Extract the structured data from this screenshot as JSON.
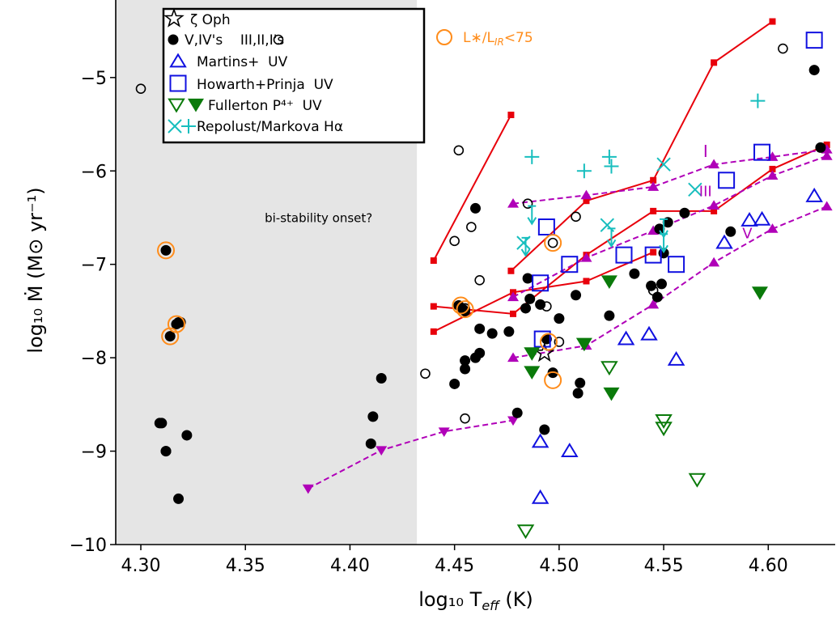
{
  "chart_data": {
    "type": "scatter",
    "xlabel": "log₁₀ T",
    "xlabel_sub": "eff",
    "xlabel_unit": " (K)",
    "ylabel": "log₁₀ Ṁ (M⊙  yr⁻¹)",
    "xlim": [
      4.288,
      4.632
    ],
    "ylim": [
      -10.0,
      -4.17
    ],
    "xticks": [
      "4.30",
      "4.35",
      "4.40",
      "4.45",
      "4.50",
      "4.55",
      "4.60"
    ],
    "yticks": [
      "−10",
      "−9",
      "−8",
      "−7",
      "−6",
      "−5"
    ],
    "shaded_region": {
      "x_from": 4.288,
      "x_to": 4.432,
      "color": "#e5e5e5"
    },
    "annotations": [
      {
        "text": "bi-stability onset?",
        "x": 4.385,
        "y": -6.55,
        "color": "#000000",
        "size": 15
      },
      {
        "text": "I",
        "x": 4.57,
        "y": -5.85,
        "color": "#b000b8",
        "size": 20
      },
      {
        "text": "III",
        "x": 4.57,
        "y": -6.27,
        "color": "#b000b8",
        "size": 18
      },
      {
        "text": "V",
        "x": 4.59,
        "y": -6.72,
        "color": "#b000b8",
        "size": 18
      }
    ],
    "legend": {
      "position": "top-left",
      "entries": [
        {
          "marker": "star",
          "label": "ζ Oph"
        },
        {
          "marker": "dot-filled+dot-open",
          "label": "V,IV's    III,II,I's"
        },
        {
          "marker": "triangle-up-blue",
          "label": "Martins+  UV"
        },
        {
          "marker": "square-blue",
          "label": "Howarth+Prinja  UV"
        },
        {
          "marker": "triangle-down-green",
          "label": "Fullerton P⁴⁺  UV"
        },
        {
          "marker": "x-plus-cyan",
          "label": "Repolust/Markova Hα"
        }
      ]
    },
    "highlight_legend": {
      "label": "L∗/L",
      "label_sub": "IR",
      "label_tail": "<75",
      "color": "#ff8c1a"
    },
    "colors": {
      "black": "#000000",
      "red": "#e8000b",
      "magenta": "#b000b8",
      "blue": "#1010e0",
      "green": "#0a7a0a",
      "cyan": "#17bebe",
      "orange": "#ff8c1a"
    },
    "series": [
      {
        "name": "V,IV's",
        "marker": "dot-filled",
        "x": [
          4.31,
          4.312,
          4.312,
          4.314,
          4.317,
          4.319,
          4.318,
          4.322,
          4.309,
          4.312,
          4.41,
          4.411,
          4.415,
          4.46,
          4.452,
          4.454,
          4.455,
          4.46,
          4.462,
          4.468,
          4.455,
          4.455,
          4.462,
          4.476,
          4.486,
          4.484,
          4.491,
          4.494,
          4.5,
          4.48,
          4.493,
          4.497,
          4.508,
          4.509,
          4.51,
          4.524,
          4.536,
          4.544,
          4.547,
          4.549,
          4.548,
          4.55,
          4.552,
          4.56,
          4.582,
          4.622,
          4.625,
          4.485,
          4.45
        ],
        "y": [
          -8.7,
          -9.0,
          -6.85,
          -7.77,
          -7.64,
          -7.62,
          -9.51,
          -8.83,
          -8.7,
          -9.0,
          -8.92,
          -8.63,
          -8.22,
          -6.4,
          -7.44,
          -7.48,
          -7.5,
          -8.0,
          -7.69,
          -7.74,
          -8.12,
          -8.03,
          -7.95,
          -7.72,
          -7.37,
          -7.47,
          -7.43,
          -7.8,
          -7.58,
          -8.59,
          -8.77,
          -8.16,
          -7.33,
          -8.38,
          -8.27,
          -7.55,
          -7.1,
          -7.23,
          -7.35,
          -7.21,
          -6.62,
          -6.88,
          -6.55,
          -6.45,
          -6.65,
          -4.92,
          -5.75,
          -7.15,
          -8.28
        ],
        "color": "#000000"
      },
      {
        "name": "III,II,I's",
        "marker": "dot-open",
        "x": [
          4.3,
          4.318,
          4.436,
          4.452,
          4.45,
          4.455,
          4.458,
          4.462,
          4.46,
          4.455,
          4.485,
          4.494,
          4.497,
          4.508,
          4.545,
          4.55,
          4.607,
          4.5
        ],
        "y": [
          -5.12,
          -7.62,
          -8.17,
          -5.78,
          -6.75,
          -8.65,
          -6.6,
          -7.17,
          -8.0,
          -7.47,
          -6.35,
          -7.45,
          -6.77,
          -6.49,
          -7.28,
          -6.88,
          -4.69,
          -7.83
        ],
        "color": "#000000"
      },
      {
        "name": "ζ Oph",
        "marker": "star",
        "x": [
          4.493
        ],
        "y": [
          -7.95
        ],
        "color": "#000000"
      },
      {
        "name": "Martins+  UV",
        "marker": "triangle-up-open",
        "x": [
          4.491,
          4.491,
          4.505,
          4.532,
          4.543,
          4.556,
          4.579,
          4.591,
          4.597,
          4.622
        ],
        "y": [
          -8.9,
          -9.5,
          -9.0,
          -7.8,
          -7.75,
          -8.02,
          -6.77,
          -6.53,
          -6.52,
          -6.27
        ],
        "color": "#1010e0"
      },
      {
        "name": "Howarth+Prinja  UV",
        "marker": "square-open",
        "x": [
          4.491,
          4.494,
          4.492,
          4.505,
          4.531,
          4.545,
          4.556,
          4.58,
          4.597,
          4.622
        ],
        "y": [
          -7.2,
          -6.6,
          -7.8,
          -7.0,
          -6.9,
          -6.9,
          -7.0,
          -6.1,
          -5.8,
          -4.6
        ],
        "color": "#1010e0"
      },
      {
        "name": "Fullerton filled",
        "marker": "triangle-down-filled",
        "x": [
          4.487,
          4.487,
          4.512,
          4.524,
          4.525,
          4.596
        ],
        "y": [
          -7.95,
          -8.15,
          -7.85,
          -7.18,
          -8.38,
          -7.3
        ],
        "color": "#0a7a0a"
      },
      {
        "name": "Fullerton open",
        "marker": "triangle-down-open",
        "x": [
          4.484,
          4.524,
          4.55,
          4.55,
          4.566
        ],
        "y": [
          -9.85,
          -8.1,
          -8.67,
          -8.75,
          -9.3
        ],
        "color": "#0a7a0a"
      },
      {
        "name": "Repolust/Markova plus",
        "marker": "plus",
        "x": [
          4.487,
          4.512,
          4.524,
          4.525,
          4.595
        ],
        "y": [
          -5.85,
          -6.0,
          -5.85,
          -5.95,
          -5.25
        ],
        "color": "#17bebe"
      },
      {
        "name": "Repolust/Markova x",
        "marker": "x",
        "x": [
          4.483,
          4.523,
          4.55,
          4.565
        ],
        "y": [
          -6.77,
          -6.58,
          -5.93,
          -6.2
        ],
        "color": "#17bebe"
      },
      {
        "name": "Repolust/Markova errbar",
        "marker": "errbar-down",
        "x": [
          4.487,
          4.484,
          4.525,
          4.55,
          4.55
        ],
        "y": [
          -6.48,
          -6.82,
          -6.72,
          -6.62,
          -6.78
        ],
        "color": "#17bebe"
      },
      {
        "name": "L_*/L_IR<75",
        "marker": "circle-open",
        "x": [
          4.312,
          4.314,
          4.317,
          4.453,
          4.455,
          4.497,
          4.495,
          4.497
        ],
        "y": [
          -6.85,
          -7.77,
          -7.64,
          -7.44,
          -7.48,
          -6.77,
          -7.83,
          -8.24
        ],
        "color": "#ff8c1a"
      }
    ],
    "lines": [
      {
        "style": "solid",
        "color": "#e8000b",
        "marker": "square-small",
        "x": [
          4.44,
          4.477
        ],
        "y": [
          -6.96,
          -5.4
        ]
      },
      {
        "style": "solid",
        "color": "#e8000b",
        "marker": "square-small",
        "x": [
          4.477,
          4.513,
          4.545,
          4.574,
          4.602
        ],
        "y": [
          -7.07,
          -6.32,
          -6.1,
          -4.84,
          -4.4
        ]
      },
      {
        "style": "solid",
        "color": "#e8000b",
        "marker": "square-small",
        "x": [
          4.44,
          4.478,
          4.513,
          4.545,
          4.574,
          4.602,
          4.628
        ],
        "y": [
          -7.45,
          -7.53,
          -6.9,
          -6.43,
          -6.43,
          -5.98,
          -5.72
        ]
      },
      {
        "style": "solid",
        "color": "#e8000b",
        "marker": "square-small",
        "x": [
          4.44,
          4.478,
          4.513,
          4.545
        ],
        "y": [
          -7.72,
          -7.3,
          -7.18,
          -6.87
        ]
      },
      {
        "style": "dashed",
        "color": "#b000b8",
        "marker": "triangle-up-small",
        "x": [
          4.478,
          4.513,
          4.545,
          4.574,
          4.602,
          4.628
        ],
        "y": [
          -6.35,
          -6.26,
          -6.17,
          -5.93,
          -5.85,
          -5.77
        ]
      },
      {
        "style": "dashed",
        "color": "#b000b8",
        "marker": "triangle-up-small",
        "x": [
          4.478,
          4.513,
          4.545,
          4.574,
          4.602,
          4.628
        ],
        "y": [
          -7.35,
          -6.93,
          -6.64,
          -6.37,
          -6.05,
          -5.84
        ]
      },
      {
        "style": "dashed",
        "color": "#b000b8",
        "marker": "triangle-up-small",
        "x": [
          4.478,
          4.513,
          4.545,
          4.574,
          4.602,
          4.628
        ],
        "y": [
          -8.0,
          -7.87,
          -7.43,
          -6.98,
          -6.62,
          -6.38
        ]
      },
      {
        "style": "dashed",
        "color": "#b000b8",
        "marker": "triangle-down-small",
        "x": [
          4.38,
          4.415,
          4.445,
          4.478
        ],
        "y": [
          -9.4,
          -8.99,
          -8.79,
          -8.67
        ]
      }
    ]
  }
}
